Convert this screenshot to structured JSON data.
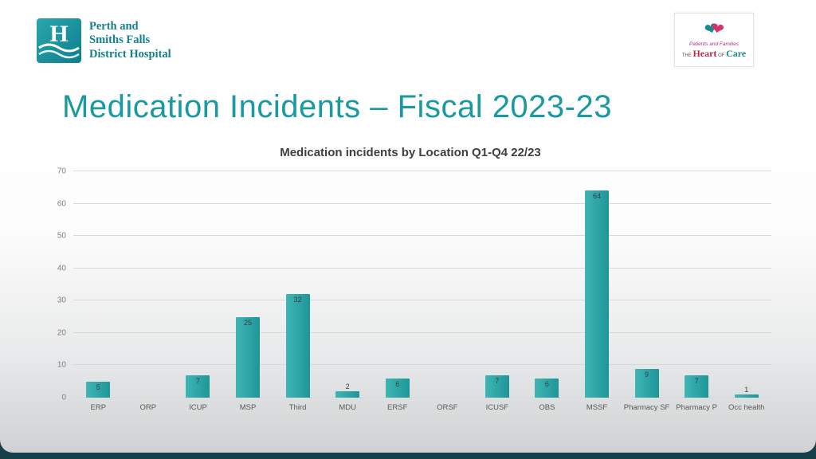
{
  "slide": {
    "title": "Medication Incidents – Fiscal 2023-23",
    "header": {
      "hospital_logo": {
        "monogram": "H",
        "lines": [
          "Perth and",
          "Smiths Falls",
          "District Hospital"
        ]
      },
      "care_logo": {
        "tagline": "Patients and Families",
        "the": "THE",
        "heart": "Heart",
        "of": "OF",
        "care": "Care"
      }
    }
  },
  "theme": {
    "accent": "#1A9AA0",
    "frame": "#17404D",
    "grid_color": "#D9D9D9"
  },
  "chart_data": {
    "type": "bar",
    "title": "Medication incidents by Location Q1-Q4 22/23",
    "categories": [
      "ERP",
      "ORP",
      "ICUP",
      "MSP",
      "Third",
      "MDU",
      "ERSF",
      "ORSF",
      "ICUSF",
      "OBS",
      "MSSF",
      "Pharmacy SF",
      "Pharmacy P",
      "Occ health"
    ],
    "values": [
      5,
      0,
      7,
      25,
      32,
      2,
      6,
      0,
      7,
      6,
      64,
      9,
      7,
      1
    ],
    "xlabel": "",
    "ylabel": "",
    "ylim": [
      0,
      70
    ],
    "yticks": [
      0,
      10,
      20,
      30,
      40,
      50,
      60,
      70
    ],
    "grid": true,
    "legend": "none",
    "bar_color": "#1E9598",
    "bar_color_light": "#3FB6B4"
  }
}
